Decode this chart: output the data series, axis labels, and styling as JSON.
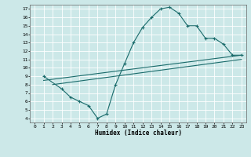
{
  "title": "",
  "xlabel": "Humidex (Indice chaleur)",
  "ylabel": "",
  "bg_color": "#cce8e8",
  "grid_color": "#ffffff",
  "line_color": "#1a6b6b",
  "xlim": [
    -0.5,
    23.5
  ],
  "ylim": [
    3.5,
    17.5
  ],
  "xticks": [
    0,
    1,
    2,
    3,
    4,
    5,
    6,
    7,
    8,
    9,
    10,
    11,
    12,
    13,
    14,
    15,
    16,
    17,
    18,
    19,
    20,
    21,
    22,
    23
  ],
  "yticks": [
    4,
    5,
    6,
    7,
    8,
    9,
    10,
    11,
    12,
    13,
    14,
    15,
    16,
    17
  ],
  "line1_x": [
    1,
    3,
    4,
    5,
    6,
    7,
    8,
    9,
    10,
    11,
    12,
    13,
    14,
    15,
    16,
    17,
    18,
    19,
    20,
    21,
    22,
    23
  ],
  "line1_y": [
    9.0,
    7.5,
    6.5,
    6.0,
    5.5,
    4.0,
    4.5,
    8.0,
    10.5,
    13.0,
    14.8,
    16.0,
    17.0,
    17.2,
    16.5,
    15.0,
    15.0,
    13.5,
    13.5,
    12.8,
    11.5,
    11.5
  ],
  "line2_x": [
    1,
    23
  ],
  "line2_y": [
    8.5,
    11.5
  ],
  "line3_x": [
    2,
    23
  ],
  "line3_y": [
    8.0,
    11.0
  ],
  "figsize": [
    3.2,
    2.0
  ],
  "dpi": 100
}
